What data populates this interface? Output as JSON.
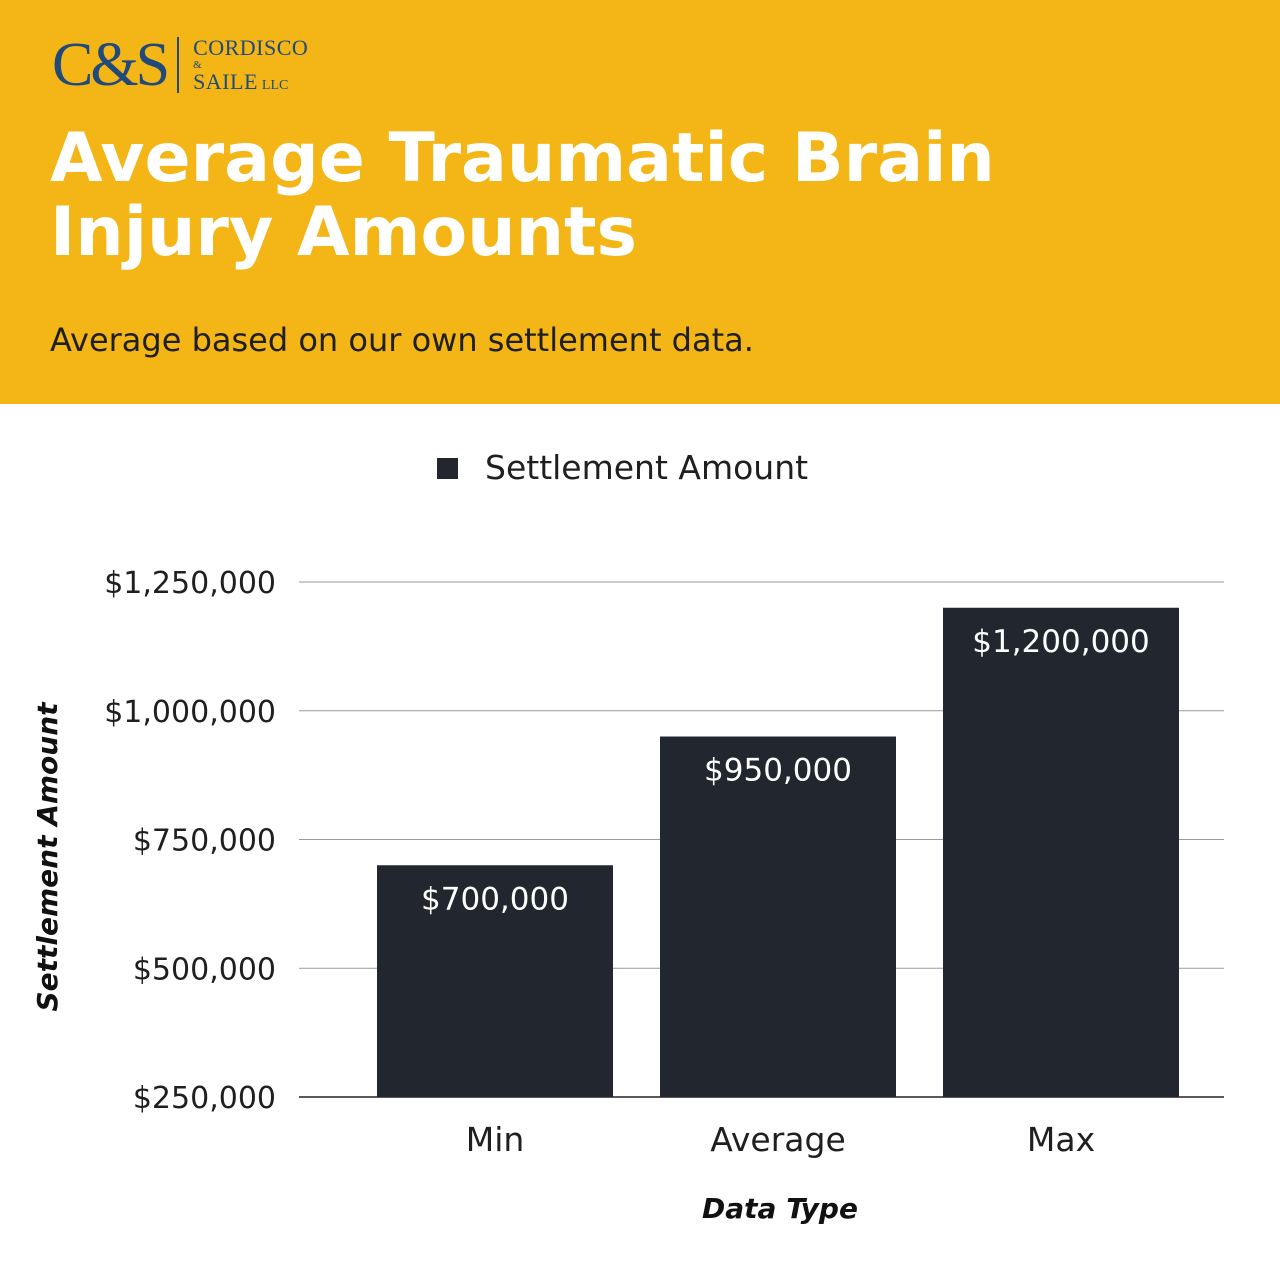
{
  "brand": {
    "mark": "C&S",
    "name_line1": "CORDISCO",
    "name_amp": "&",
    "name_line2": "SAILE",
    "name_suffix": "LLC"
  },
  "header": {
    "title": "Average Traumatic Brain Injury Amounts",
    "subtitle": "Average based on our own settlement data."
  },
  "colors": {
    "header_bg": "#f4b516",
    "bar": "#22272f",
    "brand": "#214a7c"
  },
  "chart_data": {
    "type": "bar",
    "categories": [
      "Min",
      "Average",
      "Max"
    ],
    "series": [
      {
        "name": "Settlement Amount",
        "values": [
          700000,
          950000,
          1200000
        ]
      }
    ],
    "data_labels": [
      "$700,000",
      "$950,000",
      "$1,200,000"
    ],
    "yticks": [
      250000,
      500000,
      750000,
      1000000,
      1250000
    ],
    "ytick_labels": [
      "$250,000",
      "$500,000",
      "$750,000",
      "$1,000,000",
      "$1,250,000"
    ],
    "ylim": [
      250000,
      1250000
    ],
    "xlabel": "Data Type",
    "ylabel": "Settlement Amount",
    "legend_position": "top-center",
    "grid": true
  }
}
